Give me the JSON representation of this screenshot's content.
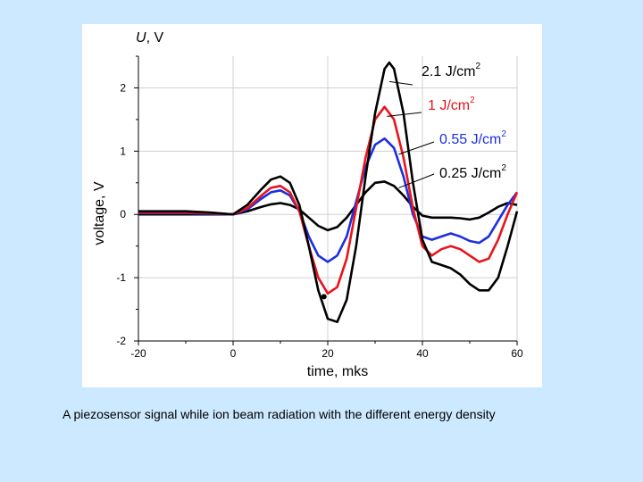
{
  "caption": "A piezosensor signal while ion beam radiation with the different energy density",
  "colors": {
    "background": "#cce9ff",
    "black": "#000000",
    "red": "#e8141a",
    "blue": "#1c2ee0"
  },
  "chart_data": {
    "type": "line",
    "xlabel": "time, mks",
    "ylabel": "voltage, V",
    "corner_label_italic": "U",
    "corner_label_rest": ", V",
    "xlim": [
      -20,
      60
    ],
    "ylim": [
      -2,
      2.5
    ],
    "xticks": [
      -20,
      0,
      20,
      40,
      60
    ],
    "yticks": [
      -2,
      -1,
      0,
      1,
      2
    ],
    "grid": true,
    "series": [
      {
        "name": "2.1 J/cm",
        "superscript": "2",
        "color": "#000000",
        "x": [
          -20,
          -10,
          -5,
          0,
          3,
          6,
          8,
          10,
          12,
          14,
          16,
          18,
          20,
          22,
          24,
          26,
          28,
          30,
          32,
          33,
          34,
          36,
          38,
          40,
          42,
          44,
          46,
          48,
          50,
          52,
          54,
          56,
          58,
          60
        ],
        "y": [
          0.05,
          0.05,
          0.03,
          0.0,
          0.15,
          0.4,
          0.55,
          0.6,
          0.5,
          0.15,
          -0.5,
          -1.2,
          -1.65,
          -1.7,
          -1.35,
          -0.5,
          0.6,
          1.6,
          2.3,
          2.4,
          2.3,
          1.6,
          0.5,
          -0.4,
          -0.75,
          -0.8,
          -0.85,
          -0.95,
          -1.1,
          -1.2,
          -1.2,
          -1.0,
          -0.5,
          0.05
        ]
      },
      {
        "name": "1 J/cm",
        "superscript": "2",
        "color": "#e8141a",
        "x": [
          -20,
          -10,
          -5,
          0,
          3,
          6,
          8,
          10,
          12,
          14,
          16,
          18,
          20,
          22,
          24,
          26,
          28,
          30,
          32,
          34,
          36,
          38,
          40,
          42,
          44,
          46,
          48,
          50,
          52,
          54,
          56,
          58,
          60
        ],
        "y": [
          0.03,
          0.03,
          0.02,
          0.0,
          0.1,
          0.3,
          0.42,
          0.45,
          0.35,
          0.05,
          -0.5,
          -1.0,
          -1.25,
          -1.15,
          -0.7,
          0.1,
          0.9,
          1.5,
          1.7,
          1.5,
          0.9,
          0.1,
          -0.5,
          -0.65,
          -0.55,
          -0.5,
          -0.55,
          -0.65,
          -0.75,
          -0.7,
          -0.4,
          0.0,
          0.35
        ]
      },
      {
        "name": "0.55 J/cm",
        "superscript": "2",
        "color": "#1c2ee0",
        "x": [
          -20,
          -10,
          -5,
          0,
          3,
          6,
          8,
          10,
          12,
          14,
          16,
          18,
          20,
          22,
          24,
          26,
          28,
          30,
          32,
          34,
          36,
          38,
          40,
          42,
          44,
          46,
          48,
          50,
          52,
          54,
          56,
          58,
          60
        ],
        "y": [
          0.02,
          0.02,
          0.01,
          0.0,
          0.08,
          0.25,
          0.35,
          0.38,
          0.3,
          0.05,
          -0.35,
          -0.65,
          -0.75,
          -0.65,
          -0.35,
          0.2,
          0.75,
          1.1,
          1.2,
          1.05,
          0.6,
          0.0,
          -0.35,
          -0.4,
          -0.35,
          -0.3,
          -0.35,
          -0.42,
          -0.45,
          -0.35,
          -0.1,
          0.15,
          0.35
        ]
      },
      {
        "name": "0.25 J/cm",
        "superscript": "2",
        "color": "#000000",
        "x": [
          -20,
          -10,
          -5,
          0,
          3,
          6,
          8,
          10,
          12,
          14,
          16,
          18,
          20,
          22,
          24,
          26,
          28,
          30,
          32,
          34,
          36,
          38,
          40,
          42,
          44,
          46,
          48,
          50,
          52,
          54,
          56,
          58,
          60
        ],
        "y": [
          0.0,
          0.0,
          0.0,
          0.0,
          0.05,
          0.12,
          0.16,
          0.18,
          0.15,
          0.08,
          -0.05,
          -0.18,
          -0.25,
          -0.2,
          -0.05,
          0.15,
          0.35,
          0.5,
          0.52,
          0.45,
          0.3,
          0.12,
          -0.02,
          -0.05,
          -0.05,
          -0.05,
          -0.06,
          -0.08,
          -0.05,
          0.03,
          0.12,
          0.18,
          0.15
        ]
      }
    ]
  }
}
